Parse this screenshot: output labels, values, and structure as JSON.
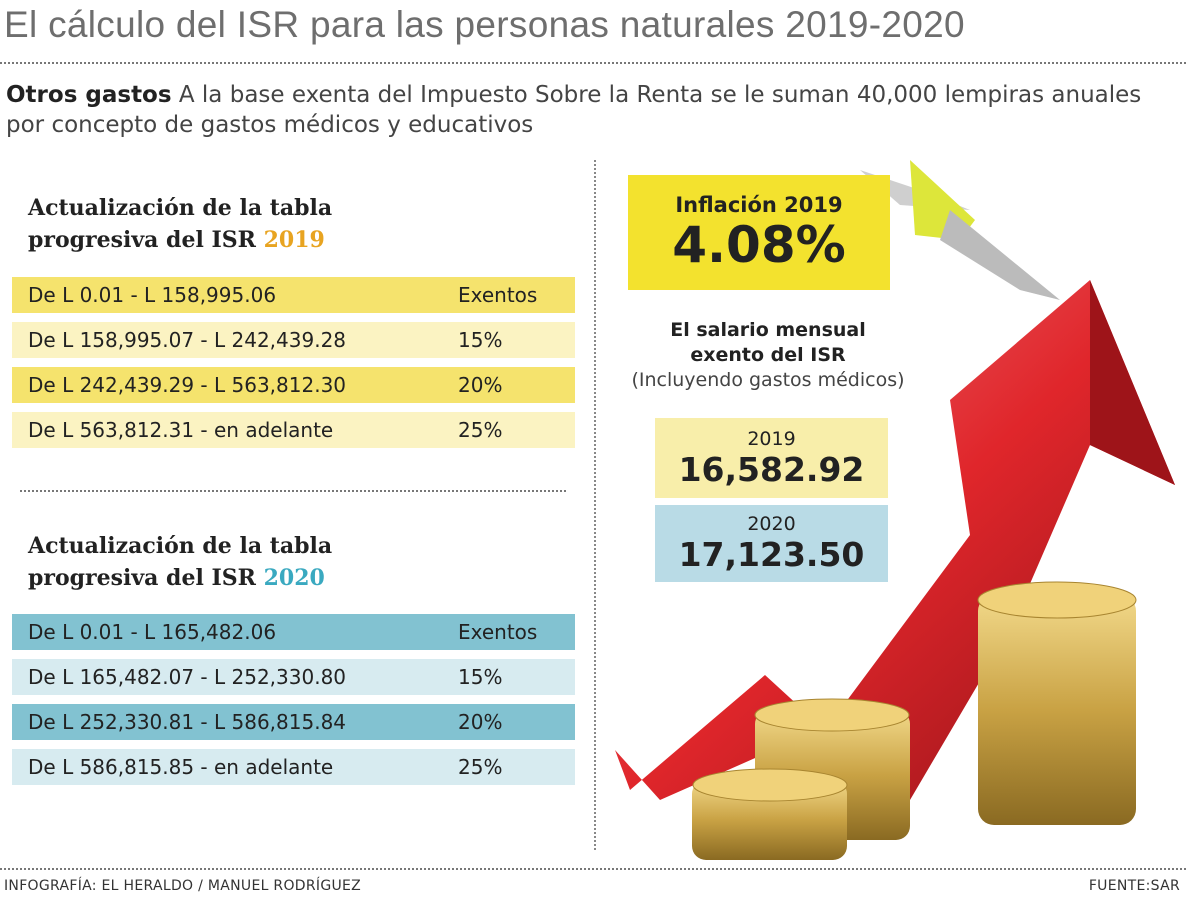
{
  "title": "El cálculo del ISR para las personas naturales 2019-2020",
  "subtitle": {
    "lead": "Otros gastos",
    "text": " A la base exenta del Impuesto Sobre la Renta se le suman 40,000 lempiras anuales por concepto de gastos médicos y educativos"
  },
  "table2019": {
    "heading_line1": "Actualización de la tabla",
    "heading_line2": "progresiva del ISR ",
    "year": "2019",
    "rows": [
      {
        "range": "De L 0.01 - L 158,995.06",
        "rate": "Exentos"
      },
      {
        "range": "De L 158,995.07 - L 242,439.28",
        "rate": "15%"
      },
      {
        "range": "De L 242,439.29 - L 563,812.30",
        "rate": "20%"
      },
      {
        "range": "De L 563,812.31 - en adelante",
        "rate": "25%"
      }
    ]
  },
  "table2020": {
    "heading_line1": "Actualización de la tabla",
    "heading_line2": "progresiva del ISR ",
    "year": "2020",
    "rows": [
      {
        "range": "De L 0.01 - L 165,482.06",
        "rate": "Exentos"
      },
      {
        "range": "De L 165,482.07 - L 252,330.80",
        "rate": "15%"
      },
      {
        "range": "De L 252,330.81 - L 586,815.84",
        "rate": "20%"
      },
      {
        "range": "De L 586,815.85 - en adelante",
        "rate": "25%"
      }
    ]
  },
  "inflation": {
    "label": "Inflación 2019",
    "value": "4.08%"
  },
  "salary": {
    "line1": "El salario mensual",
    "line2": "exento del ISR",
    "note": "(Incluyendo gastos médicos)",
    "y2019": {
      "year": "2019",
      "value": "16,582.92"
    },
    "y2020": {
      "year": "2020",
      "value": "17,123.50"
    }
  },
  "footer": {
    "credit": "INFOGRAFÍA: EL HERALDO / MANUEL RODRÍGUEZ",
    "source": "FUENTE:SAR"
  },
  "colors": {
    "yellow_dark": "#f5e36d",
    "yellow_light": "#fbf3c2",
    "blue_dark": "#82c2d1",
    "blue_light": "#d7ebf0",
    "inflation": "#f3e22e",
    "arrow": "#e0262b",
    "coin": "#c9a244"
  }
}
